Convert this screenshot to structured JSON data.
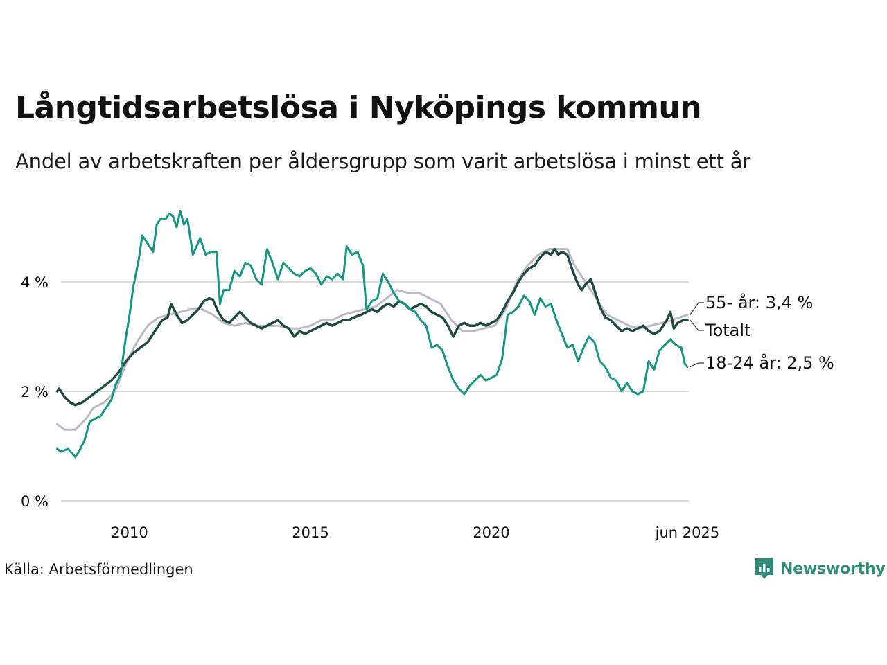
{
  "title": "Långtidsarbetslösa i Nyköpings kommun",
  "subtitle": "Andel av arbetskraften per åldersgrupp som varit arbetslösa i minst ett år",
  "source": "Källa: Arbetsförmedlingen",
  "brand": "Newsworthy",
  "colors": {
    "series_55": "#bdb8c7",
    "series_total": "#1f4a42",
    "series_18_24": "#149683",
    "grid": "#dcdcdc",
    "brand": "#2f8a78"
  },
  "chart_data": {
    "type": "line",
    "x_unit": "year",
    "ylim": [
      0,
      5.4
    ],
    "xlim": [
      2008.0,
      2025.42
    ],
    "yticks": [
      0,
      2,
      4
    ],
    "ytick_labels": [
      "0 %",
      "2 %",
      "4 %"
    ],
    "xticks": [
      2010,
      2015,
      2020,
      2025.42
    ],
    "xtick_labels": [
      "2010",
      "2015",
      "2020",
      "jun 2025"
    ],
    "grid": "horizontal",
    "series": [
      {
        "name": "55- år",
        "end_label": "55- år: 3,4 %",
        "color": "#bdb8c7",
        "points": [
          [
            2008.0,
            1.4
          ],
          [
            2008.2,
            1.3
          ],
          [
            2008.5,
            1.3
          ],
          [
            2008.8,
            1.5
          ],
          [
            2009.0,
            1.7
          ],
          [
            2009.3,
            1.8
          ],
          [
            2009.6,
            2.0
          ],
          [
            2009.9,
            2.5
          ],
          [
            2010.2,
            2.9
          ],
          [
            2010.5,
            3.2
          ],
          [
            2010.8,
            3.35
          ],
          [
            2011.1,
            3.4
          ],
          [
            2011.4,
            3.45
          ],
          [
            2011.7,
            3.5
          ],
          [
            2012.0,
            3.5
          ],
          [
            2012.3,
            3.4
          ],
          [
            2012.6,
            3.25
          ],
          [
            2012.9,
            3.2
          ],
          [
            2013.2,
            3.25
          ],
          [
            2013.5,
            3.2
          ],
          [
            2013.8,
            3.2
          ],
          [
            2014.1,
            3.2
          ],
          [
            2014.4,
            3.15
          ],
          [
            2014.7,
            3.15
          ],
          [
            2015.0,
            3.2
          ],
          [
            2015.3,
            3.3
          ],
          [
            2015.6,
            3.3
          ],
          [
            2015.9,
            3.4
          ],
          [
            2016.2,
            3.45
          ],
          [
            2016.5,
            3.5
          ],
          [
            2016.8,
            3.55
          ],
          [
            2017.1,
            3.7
          ],
          [
            2017.4,
            3.85
          ],
          [
            2017.7,
            3.8
          ],
          [
            2018.0,
            3.8
          ],
          [
            2018.3,
            3.7
          ],
          [
            2018.6,
            3.6
          ],
          [
            2018.9,
            3.3
          ],
          [
            2019.2,
            3.1
          ],
          [
            2019.5,
            3.1
          ],
          [
            2019.8,
            3.15
          ],
          [
            2020.1,
            3.2
          ],
          [
            2020.4,
            3.5
          ],
          [
            2020.7,
            4.0
          ],
          [
            2021.0,
            4.3
          ],
          [
            2021.3,
            4.5
          ],
          [
            2021.6,
            4.6
          ],
          [
            2021.9,
            4.6
          ],
          [
            2022.1,
            4.6
          ],
          [
            2022.3,
            4.3
          ],
          [
            2022.6,
            4.0
          ],
          [
            2022.9,
            3.7
          ],
          [
            2023.2,
            3.4
          ],
          [
            2023.5,
            3.3
          ],
          [
            2023.8,
            3.2
          ],
          [
            2024.1,
            3.15
          ],
          [
            2024.4,
            3.2
          ],
          [
            2024.7,
            3.25
          ],
          [
            2025.0,
            3.3
          ],
          [
            2025.2,
            3.35
          ],
          [
            2025.42,
            3.4
          ]
        ]
      },
      {
        "name": "Totalt",
        "end_label": "Totalt",
        "color": "#1f4a42",
        "points": [
          [
            2008.0,
            2.0
          ],
          [
            2008.05,
            2.05
          ],
          [
            2008.2,
            1.9
          ],
          [
            2008.35,
            1.8
          ],
          [
            2008.5,
            1.75
          ],
          [
            2008.7,
            1.8
          ],
          [
            2008.9,
            1.9
          ],
          [
            2009.1,
            2.0
          ],
          [
            2009.3,
            2.1
          ],
          [
            2009.5,
            2.2
          ],
          [
            2009.7,
            2.35
          ],
          [
            2009.9,
            2.55
          ],
          [
            2010.1,
            2.7
          ],
          [
            2010.3,
            2.8
          ],
          [
            2010.5,
            2.9
          ],
          [
            2010.7,
            3.1
          ],
          [
            2010.9,
            3.3
          ],
          [
            2011.05,
            3.35
          ],
          [
            2011.15,
            3.6
          ],
          [
            2011.3,
            3.4
          ],
          [
            2011.45,
            3.25
          ],
          [
            2011.6,
            3.3
          ],
          [
            2011.75,
            3.4
          ],
          [
            2011.9,
            3.5
          ],
          [
            2012.05,
            3.65
          ],
          [
            2012.2,
            3.7
          ],
          [
            2012.3,
            3.68
          ],
          [
            2012.45,
            3.45
          ],
          [
            2012.6,
            3.3
          ],
          [
            2012.75,
            3.25
          ],
          [
            2012.9,
            3.35
          ],
          [
            2013.05,
            3.45
          ],
          [
            2013.2,
            3.35
          ],
          [
            2013.35,
            3.25
          ],
          [
            2013.5,
            3.2
          ],
          [
            2013.65,
            3.15
          ],
          [
            2013.8,
            3.2
          ],
          [
            2013.95,
            3.25
          ],
          [
            2014.1,
            3.3
          ],
          [
            2014.25,
            3.2
          ],
          [
            2014.4,
            3.15
          ],
          [
            2014.55,
            3.0
          ],
          [
            2014.7,
            3.1
          ],
          [
            2014.85,
            3.05
          ],
          [
            2015.0,
            3.1
          ],
          [
            2015.15,
            3.15
          ],
          [
            2015.3,
            3.2
          ],
          [
            2015.45,
            3.25
          ],
          [
            2015.6,
            3.2
          ],
          [
            2015.75,
            3.25
          ],
          [
            2015.9,
            3.3
          ],
          [
            2016.05,
            3.3
          ],
          [
            2016.2,
            3.35
          ],
          [
            2016.4,
            3.4
          ],
          [
            2016.55,
            3.45
          ],
          [
            2016.7,
            3.5
          ],
          [
            2016.85,
            3.45
          ],
          [
            2017.0,
            3.55
          ],
          [
            2017.15,
            3.6
          ],
          [
            2017.3,
            3.55
          ],
          [
            2017.45,
            3.65
          ],
          [
            2017.6,
            3.6
          ],
          [
            2017.75,
            3.5
          ],
          [
            2017.9,
            3.55
          ],
          [
            2018.05,
            3.6
          ],
          [
            2018.2,
            3.55
          ],
          [
            2018.35,
            3.45
          ],
          [
            2018.5,
            3.4
          ],
          [
            2018.65,
            3.35
          ],
          [
            2018.8,
            3.2
          ],
          [
            2018.95,
            3.0
          ],
          [
            2019.1,
            3.2
          ],
          [
            2019.25,
            3.25
          ],
          [
            2019.4,
            3.2
          ],
          [
            2019.55,
            3.2
          ],
          [
            2019.7,
            3.25
          ],
          [
            2019.85,
            3.2
          ],
          [
            2020.0,
            3.25
          ],
          [
            2020.15,
            3.3
          ],
          [
            2020.3,
            3.45
          ],
          [
            2020.45,
            3.65
          ],
          [
            2020.6,
            3.8
          ],
          [
            2020.75,
            4.0
          ],
          [
            2020.9,
            4.15
          ],
          [
            2021.05,
            4.25
          ],
          [
            2021.2,
            4.3
          ],
          [
            2021.35,
            4.45
          ],
          [
            2021.5,
            4.55
          ],
          [
            2021.65,
            4.5
          ],
          [
            2021.75,
            4.6
          ],
          [
            2021.85,
            4.5
          ],
          [
            2021.95,
            4.55
          ],
          [
            2022.1,
            4.5
          ],
          [
            2022.25,
            4.2
          ],
          [
            2022.4,
            3.95
          ],
          [
            2022.5,
            3.85
          ],
          [
            2022.6,
            3.95
          ],
          [
            2022.75,
            4.05
          ],
          [
            2022.85,
            3.85
          ],
          [
            2023.0,
            3.55
          ],
          [
            2023.15,
            3.35
          ],
          [
            2023.3,
            3.3
          ],
          [
            2023.45,
            3.2
          ],
          [
            2023.6,
            3.1
          ],
          [
            2023.75,
            3.15
          ],
          [
            2023.9,
            3.1
          ],
          [
            2024.05,
            3.15
          ],
          [
            2024.2,
            3.2
          ],
          [
            2024.35,
            3.1
          ],
          [
            2024.5,
            3.05
          ],
          [
            2024.65,
            3.1
          ],
          [
            2024.75,
            3.2
          ],
          [
            2024.85,
            3.3
          ],
          [
            2024.95,
            3.45
          ],
          [
            2025.05,
            3.15
          ],
          [
            2025.15,
            3.25
          ],
          [
            2025.3,
            3.3
          ],
          [
            2025.42,
            3.3
          ]
        ]
      },
      {
        "name": "18-24 år",
        "end_label": "18-24 år: 2,5 %",
        "color": "#149683",
        "points": [
          [
            2008.0,
            0.95
          ],
          [
            2008.1,
            0.9
          ],
          [
            2008.3,
            0.95
          ],
          [
            2008.5,
            0.8
          ],
          [
            2008.6,
            0.9
          ],
          [
            2008.75,
            1.1
          ],
          [
            2008.9,
            1.45
          ],
          [
            2009.05,
            1.5
          ],
          [
            2009.2,
            1.55
          ],
          [
            2009.35,
            1.7
          ],
          [
            2009.5,
            1.85
          ],
          [
            2009.6,
            2.1
          ],
          [
            2009.75,
            2.3
          ],
          [
            2009.9,
            3.0
          ],
          [
            2010.0,
            3.4
          ],
          [
            2010.1,
            3.9
          ],
          [
            2010.25,
            4.4
          ],
          [
            2010.35,
            4.85
          ],
          [
            2010.5,
            4.7
          ],
          [
            2010.65,
            4.55
          ],
          [
            2010.75,
            5.05
          ],
          [
            2010.85,
            5.15
          ],
          [
            2011.0,
            5.15
          ],
          [
            2011.1,
            5.25
          ],
          [
            2011.2,
            5.2
          ],
          [
            2011.3,
            5.0
          ],
          [
            2011.4,
            5.3
          ],
          [
            2011.5,
            5.05
          ],
          [
            2011.6,
            5.15
          ],
          [
            2011.75,
            4.5
          ],
          [
            2011.85,
            4.65
          ],
          [
            2011.95,
            4.8
          ],
          [
            2012.1,
            4.5
          ],
          [
            2012.25,
            4.55
          ],
          [
            2012.4,
            4.55
          ],
          [
            2012.5,
            3.6
          ],
          [
            2012.6,
            3.85
          ],
          [
            2012.75,
            3.85
          ],
          [
            2012.9,
            4.2
          ],
          [
            2013.05,
            4.1
          ],
          [
            2013.2,
            4.35
          ],
          [
            2013.35,
            4.3
          ],
          [
            2013.5,
            4.05
          ],
          [
            2013.65,
            3.95
          ],
          [
            2013.8,
            4.6
          ],
          [
            2013.95,
            4.35
          ],
          [
            2014.1,
            4.05
          ],
          [
            2014.25,
            4.35
          ],
          [
            2014.4,
            4.25
          ],
          [
            2014.55,
            4.15
          ],
          [
            2014.7,
            4.1
          ],
          [
            2014.85,
            4.2
          ],
          [
            2015.0,
            4.25
          ],
          [
            2015.15,
            4.15
          ],
          [
            2015.3,
            3.95
          ],
          [
            2015.45,
            4.1
          ],
          [
            2015.6,
            4.05
          ],
          [
            2015.75,
            4.15
          ],
          [
            2015.9,
            4.05
          ],
          [
            2016.0,
            4.65
          ],
          [
            2016.15,
            4.5
          ],
          [
            2016.3,
            4.55
          ],
          [
            2016.45,
            4.3
          ],
          [
            2016.55,
            3.5
          ],
          [
            2016.7,
            3.65
          ],
          [
            2016.85,
            3.7
          ],
          [
            2017.0,
            4.15
          ],
          [
            2017.15,
            4.0
          ],
          [
            2017.3,
            3.8
          ],
          [
            2017.45,
            3.65
          ],
          [
            2017.6,
            3.6
          ],
          [
            2017.75,
            3.5
          ],
          [
            2017.9,
            3.45
          ],
          [
            2018.05,
            3.3
          ],
          [
            2018.2,
            3.2
          ],
          [
            2018.35,
            2.8
          ],
          [
            2018.5,
            2.85
          ],
          [
            2018.65,
            2.75
          ],
          [
            2018.8,
            2.45
          ],
          [
            2018.95,
            2.2
          ],
          [
            2019.1,
            2.05
          ],
          [
            2019.25,
            1.95
          ],
          [
            2019.4,
            2.1
          ],
          [
            2019.55,
            2.2
          ],
          [
            2019.7,
            2.3
          ],
          [
            2019.85,
            2.2
          ],
          [
            2020.0,
            2.25
          ],
          [
            2020.15,
            2.3
          ],
          [
            2020.3,
            2.6
          ],
          [
            2020.45,
            3.4
          ],
          [
            2020.6,
            3.45
          ],
          [
            2020.75,
            3.55
          ],
          [
            2020.9,
            3.75
          ],
          [
            2021.05,
            3.65
          ],
          [
            2021.2,
            3.4
          ],
          [
            2021.35,
            3.7
          ],
          [
            2021.5,
            3.55
          ],
          [
            2021.65,
            3.6
          ],
          [
            2021.8,
            3.3
          ],
          [
            2021.95,
            3.05
          ],
          [
            2022.1,
            2.8
          ],
          [
            2022.25,
            2.85
          ],
          [
            2022.4,
            2.55
          ],
          [
            2022.55,
            2.8
          ],
          [
            2022.7,
            3.0
          ],
          [
            2022.85,
            2.9
          ],
          [
            2023.0,
            2.55
          ],
          [
            2023.15,
            2.45
          ],
          [
            2023.3,
            2.25
          ],
          [
            2023.45,
            2.2
          ],
          [
            2023.6,
            2.0
          ],
          [
            2023.75,
            2.15
          ],
          [
            2023.9,
            2.0
          ],
          [
            2024.05,
            1.95
          ],
          [
            2024.2,
            2.0
          ],
          [
            2024.35,
            2.55
          ],
          [
            2024.5,
            2.4
          ],
          [
            2024.65,
            2.75
          ],
          [
            2024.8,
            2.85
          ],
          [
            2024.95,
            2.95
          ],
          [
            2025.1,
            2.85
          ],
          [
            2025.25,
            2.8
          ],
          [
            2025.35,
            2.5
          ],
          [
            2025.42,
            2.45
          ]
        ]
      }
    ]
  }
}
